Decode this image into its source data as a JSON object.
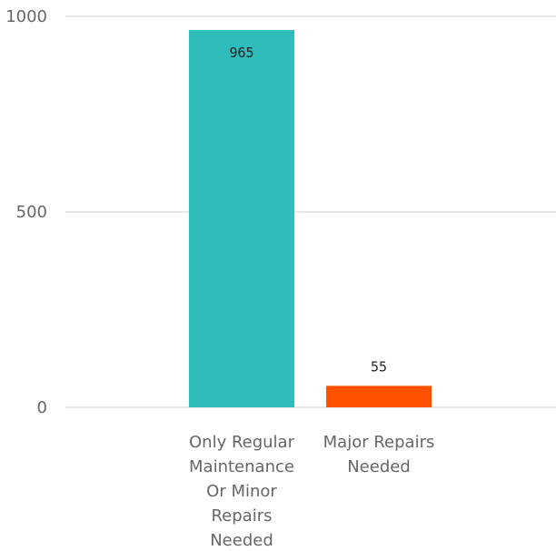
{
  "chart_data": {
    "type": "bar",
    "categories": [
      "Only Regular Maintenance Or Minor Repairs Needed",
      "Major Repairs Needed"
    ],
    "values": [
      965,
      55
    ],
    "data_labels": [
      "965",
      "55"
    ],
    "colors": [
      "#2ebdba",
      "#ff5100"
    ],
    "ylim": [
      0,
      1000
    ],
    "yticks": [
      0,
      500,
      1000
    ],
    "ytick_labels": [
      "0",
      "500",
      "1000"
    ],
    "grid": true,
    "legend": "none"
  }
}
